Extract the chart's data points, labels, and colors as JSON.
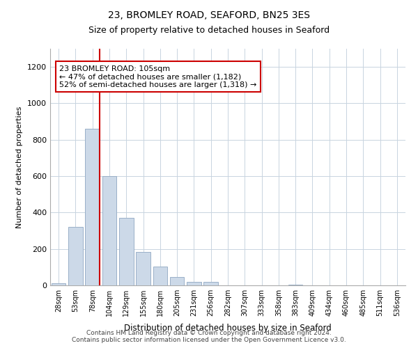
{
  "title": "23, BROMLEY ROAD, SEAFORD, BN25 3ES",
  "subtitle": "Size of property relative to detached houses in Seaford",
  "xlabel": "Distribution of detached houses by size in Seaford",
  "ylabel": "Number of detached properties",
  "bar_color": "#ccd9e8",
  "bar_edge_color": "#9ab0c8",
  "bin_labels": [
    "28sqm",
    "53sqm",
    "78sqm",
    "104sqm",
    "129sqm",
    "155sqm",
    "180sqm",
    "205sqm",
    "231sqm",
    "256sqm",
    "282sqm",
    "307sqm",
    "333sqm",
    "358sqm",
    "383sqm",
    "409sqm",
    "434sqm",
    "460sqm",
    "485sqm",
    "511sqm",
    "536sqm"
  ],
  "bar_heights": [
    10,
    320,
    860,
    600,
    370,
    185,
    105,
    45,
    20,
    20,
    0,
    0,
    0,
    0,
    5,
    0,
    0,
    0,
    0,
    0,
    0
  ],
  "ylim": [
    0,
    1300
  ],
  "yticks": [
    0,
    200,
    400,
    600,
    800,
    1000,
    1200
  ],
  "property_line_color": "#cc0000",
  "annotation_line1": "23 BROMLEY ROAD: 105sqm",
  "annotation_line2": "← 47% of detached houses are smaller (1,182)",
  "annotation_line3": "52% of semi-detached houses are larger (1,318) →",
  "annotation_box_color": "#ffffff",
  "annotation_box_edge": "#cc0000",
  "footnote1": "Contains HM Land Registry data © Crown copyright and database right 2024.",
  "footnote2": "Contains public sector information licensed under the Open Government Licence v3.0.",
  "background_color": "#ffffff",
  "grid_color": "#c8d4e0"
}
